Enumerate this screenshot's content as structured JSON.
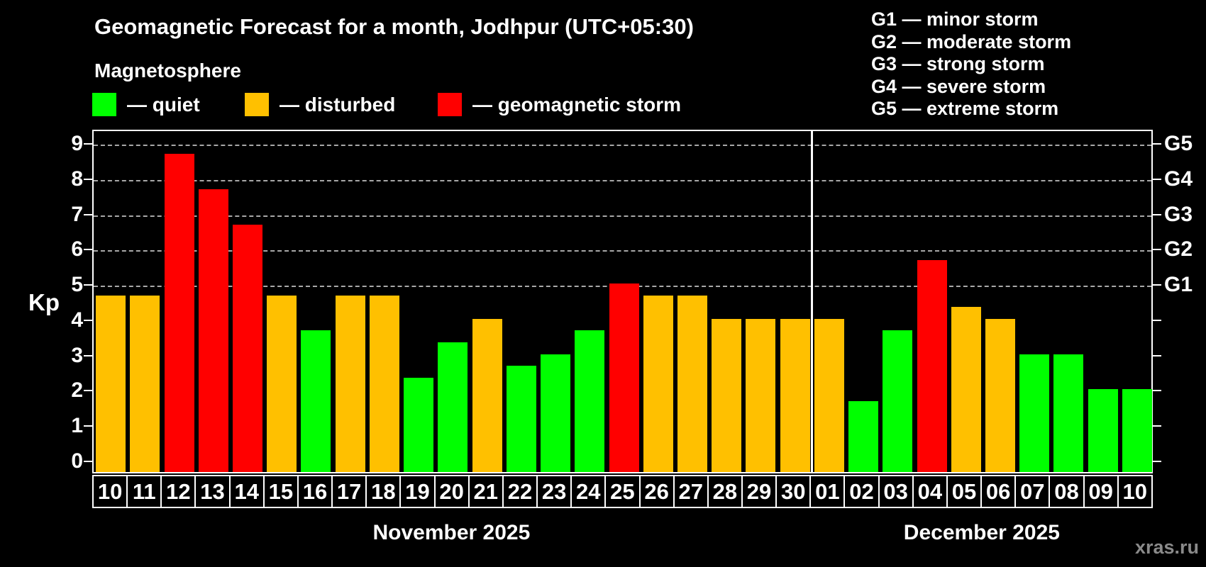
{
  "title": "Geomagnetic Forecast for a month, Jodhpur (UTC+05:30)",
  "subtitle": "Magnetosphere",
  "watermark": "xras.ru",
  "colors": {
    "quiet": "#00ff00",
    "disturbed": "#ffc000",
    "storm": "#ff0000",
    "background": "#000000",
    "text": "#ffffff",
    "gridline": "#a8a8a8",
    "watermark_text": "#8a8a8a"
  },
  "legend": {
    "items": [
      {
        "key": "quiet",
        "label": "— quiet"
      },
      {
        "key": "disturbed",
        "label": "— disturbed"
      },
      {
        "key": "storm",
        "label": "— geomagnetic storm"
      }
    ]
  },
  "g_legend": [
    {
      "code": "G1",
      "label": "minor storm"
    },
    {
      "code": "G2",
      "label": "moderate storm"
    },
    {
      "code": "G3",
      "label": "strong storm"
    },
    {
      "code": "G4",
      "label": "severe storm"
    },
    {
      "code": "G5",
      "label": "extreme storm"
    }
  ],
  "axis": {
    "ylabel": "Kp",
    "yticks": [
      0,
      1,
      2,
      3,
      4,
      5,
      6,
      7,
      8,
      9
    ],
    "g_levels": [
      {
        "code": "G1",
        "kp": 5
      },
      {
        "code": "G2",
        "kp": 6
      },
      {
        "code": "G3",
        "kp": 7
      },
      {
        "code": "G4",
        "kp": 8
      },
      {
        "code": "G5",
        "kp": 9
      }
    ]
  },
  "months": [
    {
      "label": "November 2025"
    },
    {
      "label": "December 2025"
    }
  ],
  "chart_data": {
    "type": "bar",
    "title": "Geomagnetic Forecast for a month, Jodhpur (UTC+05:30)",
    "xlabel": "",
    "ylabel": "Kp",
    "ylim": [
      -0.34,
      9.4
    ],
    "grid_kp_levels": [
      5,
      6,
      7,
      8,
      9
    ],
    "legend_position": "top",
    "points": [
      {
        "day": "10",
        "month": 0,
        "value": 4.67,
        "status": "disturbed"
      },
      {
        "day": "11",
        "month": 0,
        "value": 4.67,
        "status": "disturbed"
      },
      {
        "day": "12",
        "month": 0,
        "value": 8.67,
        "status": "storm"
      },
      {
        "day": "13",
        "month": 0,
        "value": 7.67,
        "status": "storm"
      },
      {
        "day": "14",
        "month": 0,
        "value": 6.67,
        "status": "storm"
      },
      {
        "day": "15",
        "month": 0,
        "value": 4.67,
        "status": "disturbed"
      },
      {
        "day": "16",
        "month": 0,
        "value": 3.67,
        "status": "quiet"
      },
      {
        "day": "17",
        "month": 0,
        "value": 4.67,
        "status": "disturbed"
      },
      {
        "day": "18",
        "month": 0,
        "value": 4.67,
        "status": "disturbed"
      },
      {
        "day": "19",
        "month": 0,
        "value": 2.33,
        "status": "quiet"
      },
      {
        "day": "20",
        "month": 0,
        "value": 3.33,
        "status": "quiet"
      },
      {
        "day": "21",
        "month": 0,
        "value": 4.0,
        "status": "disturbed"
      },
      {
        "day": "22",
        "month": 0,
        "value": 2.67,
        "status": "quiet"
      },
      {
        "day": "23",
        "month": 0,
        "value": 3.0,
        "status": "quiet"
      },
      {
        "day": "24",
        "month": 0,
        "value": 3.67,
        "status": "quiet"
      },
      {
        "day": "25",
        "month": 0,
        "value": 5.0,
        "status": "storm"
      },
      {
        "day": "26",
        "month": 0,
        "value": 4.67,
        "status": "disturbed"
      },
      {
        "day": "27",
        "month": 0,
        "value": 4.67,
        "status": "disturbed"
      },
      {
        "day": "28",
        "month": 0,
        "value": 4.0,
        "status": "disturbed"
      },
      {
        "day": "29",
        "month": 0,
        "value": 4.0,
        "status": "disturbed"
      },
      {
        "day": "30",
        "month": 0,
        "value": 4.0,
        "status": "disturbed"
      },
      {
        "day": "01",
        "month": 1,
        "value": 4.0,
        "status": "disturbed"
      },
      {
        "day": "02",
        "month": 1,
        "value": 1.67,
        "status": "quiet"
      },
      {
        "day": "03",
        "month": 1,
        "value": 3.67,
        "status": "quiet"
      },
      {
        "day": "04",
        "month": 1,
        "value": 5.67,
        "status": "storm"
      },
      {
        "day": "05",
        "month": 1,
        "value": 4.33,
        "status": "disturbed"
      },
      {
        "day": "06",
        "month": 1,
        "value": 4.0,
        "status": "disturbed"
      },
      {
        "day": "07",
        "month": 1,
        "value": 3.0,
        "status": "quiet"
      },
      {
        "day": "08",
        "month": 1,
        "value": 3.0,
        "status": "quiet"
      },
      {
        "day": "09",
        "month": 1,
        "value": 2.0,
        "status": "quiet"
      },
      {
        "day": "10",
        "month": 1,
        "value": 2.0,
        "status": "quiet"
      }
    ]
  }
}
